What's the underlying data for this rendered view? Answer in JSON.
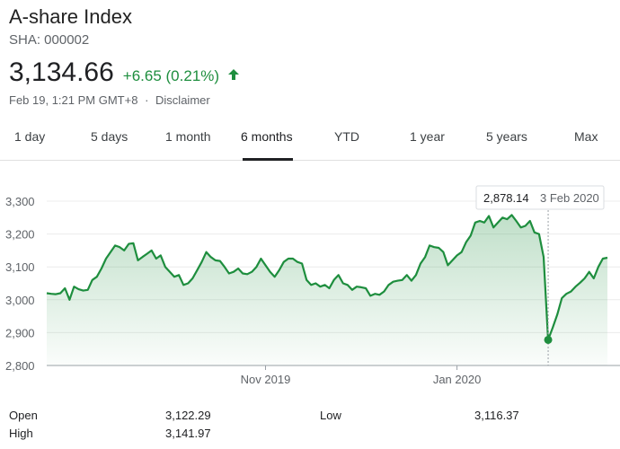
{
  "header": {
    "title": "A-share Index",
    "ticker": "SHA: 000002",
    "price": "3,134.66",
    "change": "+6.65 (0.21%)",
    "timestamp": "Feb 19, 1:21 PM GMT+8",
    "separator": "·",
    "disclaimer": "Disclaimer",
    "up_color": "#1e8e3e"
  },
  "tabs": [
    {
      "label": "1 day",
      "active": false
    },
    {
      "label": "5 days",
      "active": false
    },
    {
      "label": "1 month",
      "active": false
    },
    {
      "label": "6 months",
      "active": true
    },
    {
      "label": "YTD",
      "active": false
    },
    {
      "label": "1 year",
      "active": false
    },
    {
      "label": "5 years",
      "active": false
    },
    {
      "label": "Max",
      "active": false
    }
  ],
  "chart_data": {
    "type": "area",
    "ylim": [
      2800,
      3300
    ],
    "yticks": [
      "3,300",
      "3,200",
      "3,100",
      "3,000",
      "2,900",
      "2,800"
    ],
    "ytick_values": [
      3300,
      3200,
      3100,
      3000,
      2900,
      2800
    ],
    "xtick_labels": [
      "Nov 2019",
      "Jan 2020"
    ],
    "xtick_index": [
      48,
      90
    ],
    "series": [
      {
        "values": [
          3020,
          3018,
          3017,
          3020,
          3035,
          3000,
          3040,
          3032,
          3028,
          3030,
          3060,
          3070,
          3095,
          3125,
          3145,
          3165,
          3160,
          3150,
          3170,
          3172,
          3120,
          3130,
          3140,
          3150,
          3125,
          3135,
          3100,
          3085,
          3070,
          3075,
          3045,
          3050,
          3065,
          3090,
          3115,
          3145,
          3130,
          3120,
          3118,
          3100,
          3080,
          3085,
          3095,
          3080,
          3078,
          3085,
          3100,
          3125,
          3105,
          3085,
          3070,
          3090,
          3115,
          3125,
          3125,
          3115,
          3110,
          3060,
          3045,
          3050,
          3040,
          3045,
          3035,
          3060,
          3075,
          3050,
          3045,
          3030,
          3040,
          3038,
          3035,
          3012,
          3018,
          3015,
          3025,
          3045,
          3055,
          3058,
          3060,
          3075,
          3058,
          3075,
          3110,
          3130,
          3165,
          3160,
          3158,
          3145,
          3105,
          3120,
          3135,
          3145,
          3175,
          3195,
          3235,
          3240,
          3235,
          3255,
          3220,
          3235,
          3250,
          3245,
          3258,
          3240,
          3220,
          3225,
          3240,
          3205,
          3200,
          3130,
          2878,
          2915,
          2955,
          3005,
          3018,
          3025,
          3040,
          3052,
          3065,
          3085,
          3065,
          3100,
          3125,
          3128
        ]
      }
    ],
    "highlight": {
      "index": 110,
      "value": "2,878.14",
      "date": "3 Feb 2020"
    },
    "line_color": "#1e8e3e",
    "grid": true
  },
  "stats": [
    {
      "label": "Open",
      "value": "3,122.29"
    },
    {
      "label": "High",
      "value": "3,141.97"
    },
    {
      "label": "Low",
      "value": "3,116.37"
    }
  ]
}
